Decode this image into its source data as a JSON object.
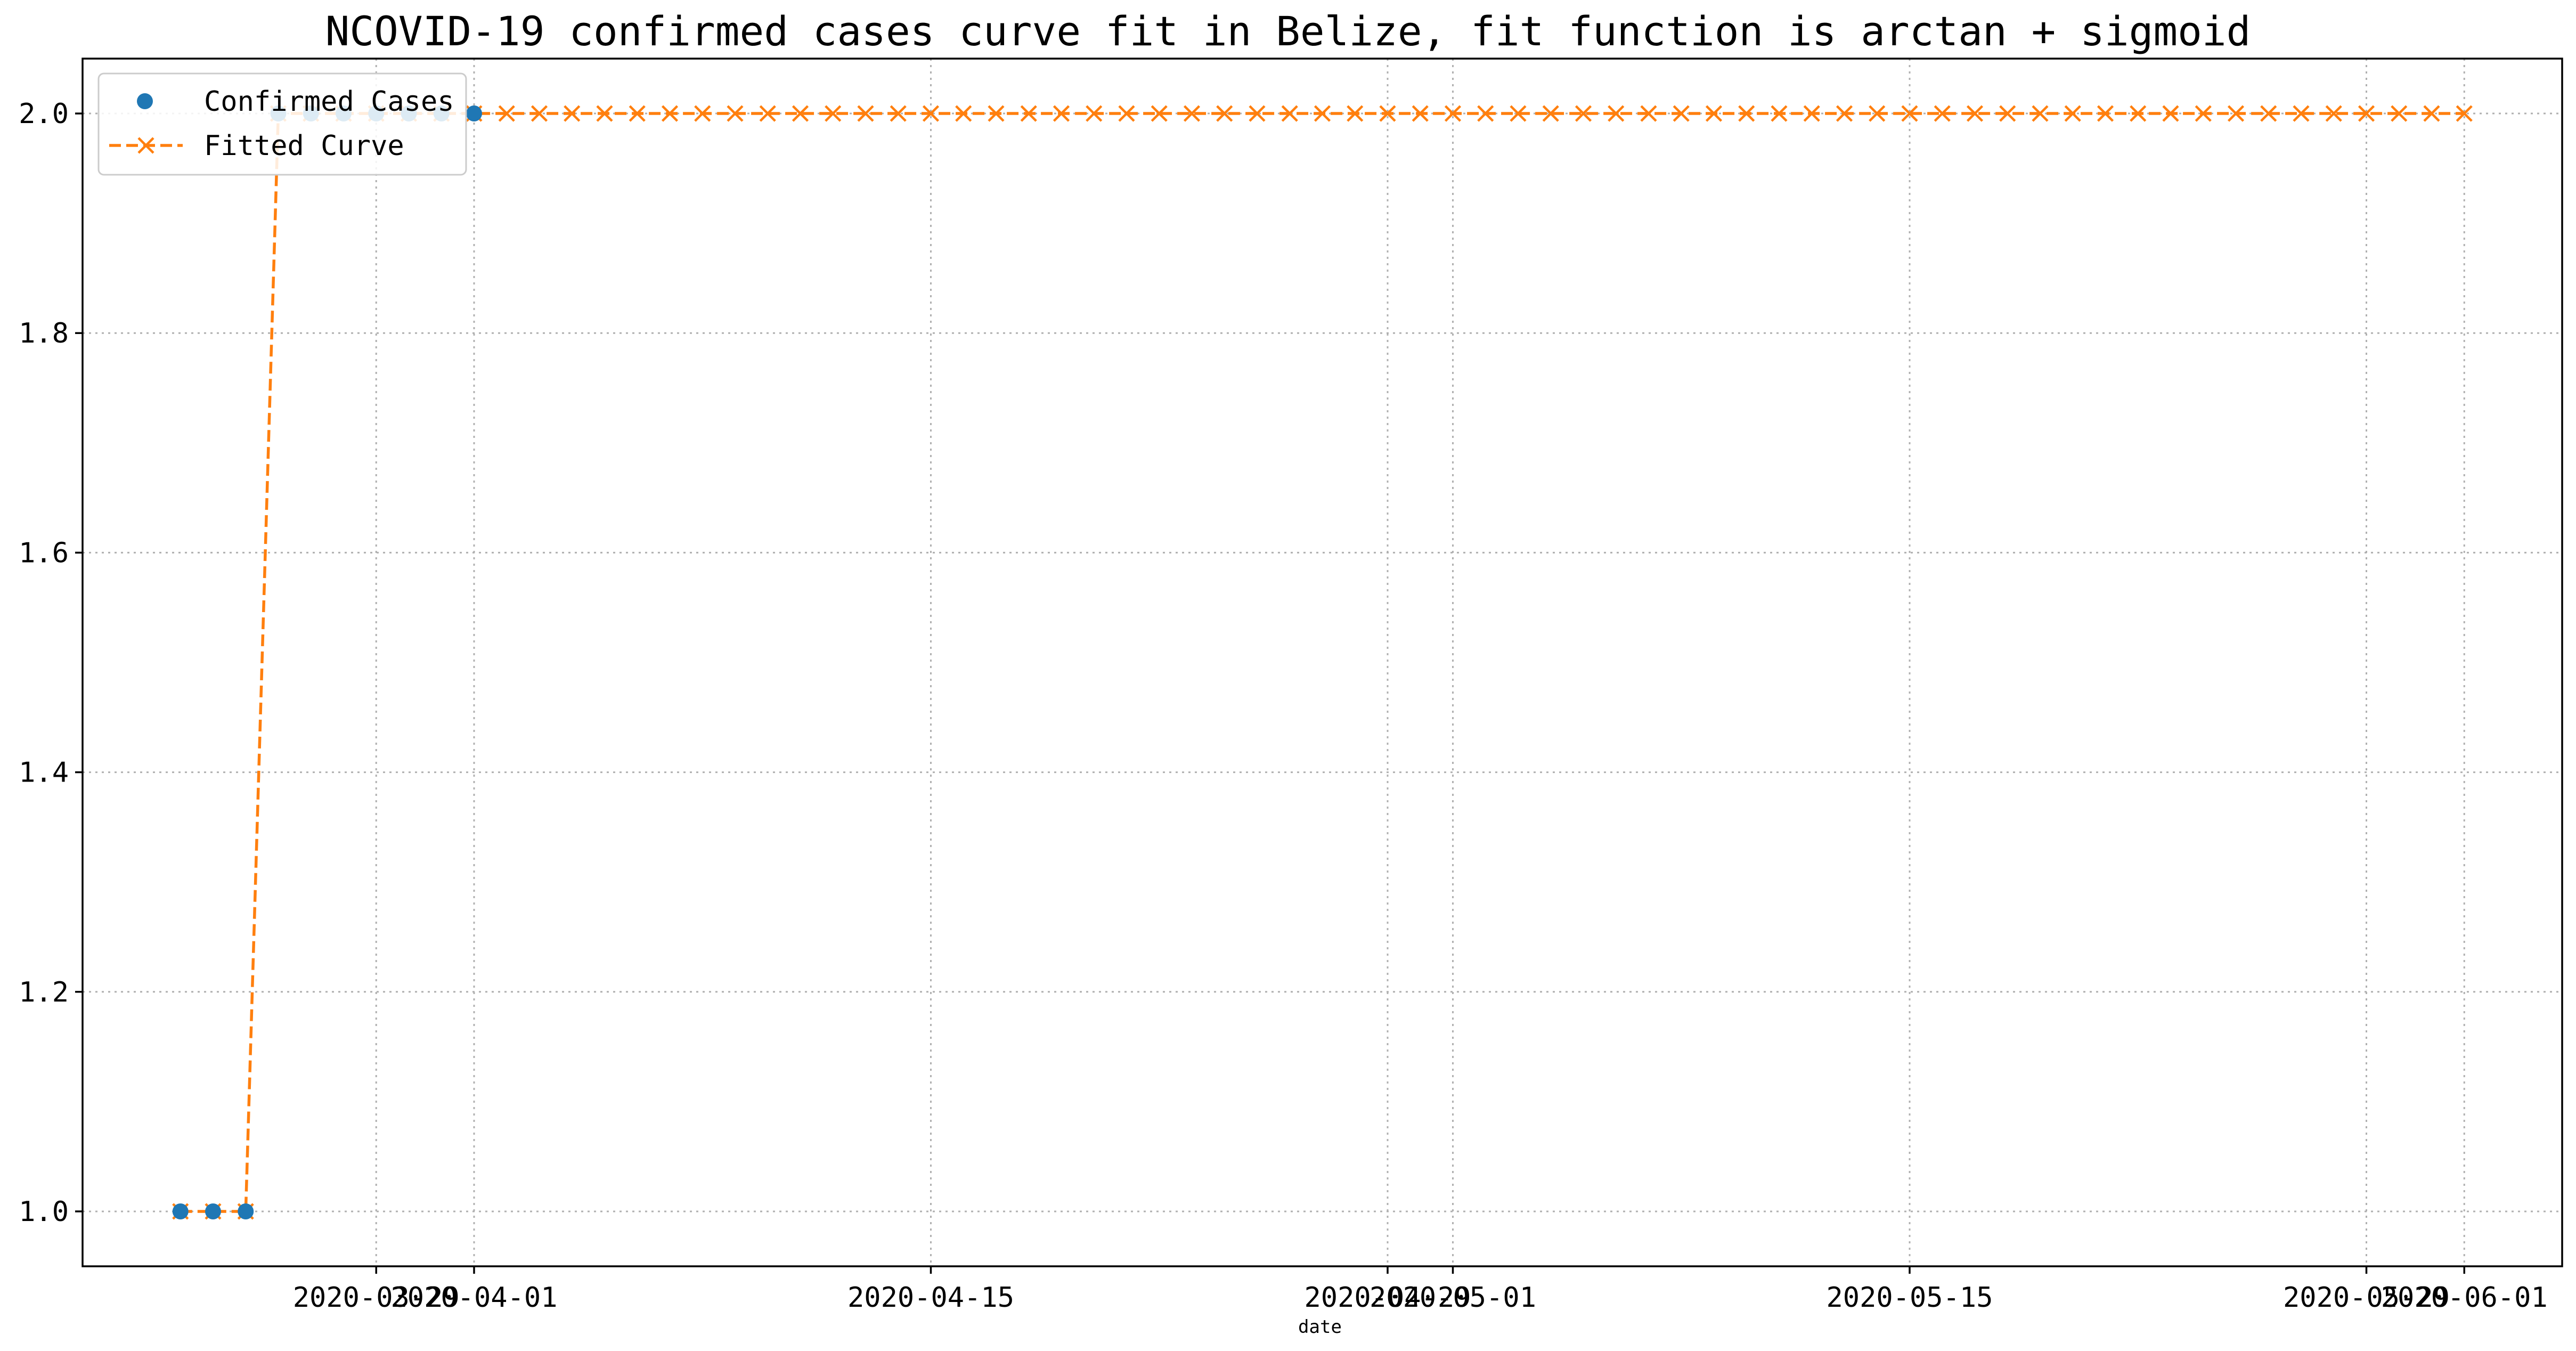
{
  "chart_data": {
    "type": "line",
    "title": "NCOVID-19 confirmed cases curve fit in Belize, fit function is arctan + sigmoid",
    "xlabel": "date",
    "ylabel": "",
    "x_start_date": "2020-03-23",
    "x_end_date": "2020-06-01",
    "xlim": [
      "2020-03-20",
      "2020-06-04"
    ],
    "ylim": [
      0.95,
      2.05
    ],
    "yticks": [
      1.0,
      1.2,
      1.4,
      1.6,
      1.8,
      2.0
    ],
    "ytick_labels": [
      "1.0",
      "1.2",
      "1.4",
      "1.6",
      "1.8",
      "2.0"
    ],
    "xticks": [
      "2020-03-29",
      "2020-04-01",
      "2020-04-15",
      "2020-04-29",
      "2020-05-01",
      "2020-05-15",
      "2020-05-29",
      "2020-06-01"
    ],
    "xtick_labels": [
      "2020-03-29",
      "2020-04-01",
      "2020-04-15",
      "2020-04-29",
      "2020-05-01",
      "2020-05-15",
      "2020-05-29",
      "2020-06-01"
    ],
    "grid": true,
    "legend": "upper-left",
    "series": [
      {
        "name": "Confirmed Cases",
        "style": "points",
        "marker": "circle",
        "color": "#1f77b4",
        "x": [
          "2020-03-23",
          "2020-03-24",
          "2020-03-25",
          "2020-03-26",
          "2020-03-27",
          "2020-03-28",
          "2020-03-29",
          "2020-03-30",
          "2020-03-31",
          "2020-04-01"
        ],
        "values": [
          1,
          1,
          1,
          2,
          2,
          2,
          2,
          2,
          2,
          2
        ]
      },
      {
        "name": "Fitted Curve",
        "style": "dashed-line",
        "marker": "x",
        "color": "#ff7f0e",
        "x_start": "2020-03-23",
        "x_end": "2020-06-01",
        "step_days": 1,
        "values_rule": "1.0 for first 3 days, then 2.0",
        "values": [
          1,
          1,
          1,
          2,
          2,
          2,
          2,
          2,
          2,
          2,
          2,
          2,
          2,
          2,
          2,
          2,
          2,
          2,
          2,
          2,
          2,
          2,
          2,
          2,
          2,
          2,
          2,
          2,
          2,
          2,
          2,
          2,
          2,
          2,
          2,
          2,
          2,
          2,
          2,
          2,
          2,
          2,
          2,
          2,
          2,
          2,
          2,
          2,
          2,
          2,
          2,
          2,
          2,
          2,
          2,
          2,
          2,
          2,
          2,
          2,
          2,
          2,
          2,
          2,
          2,
          2,
          2,
          2,
          2,
          2,
          2
        ]
      }
    ]
  }
}
